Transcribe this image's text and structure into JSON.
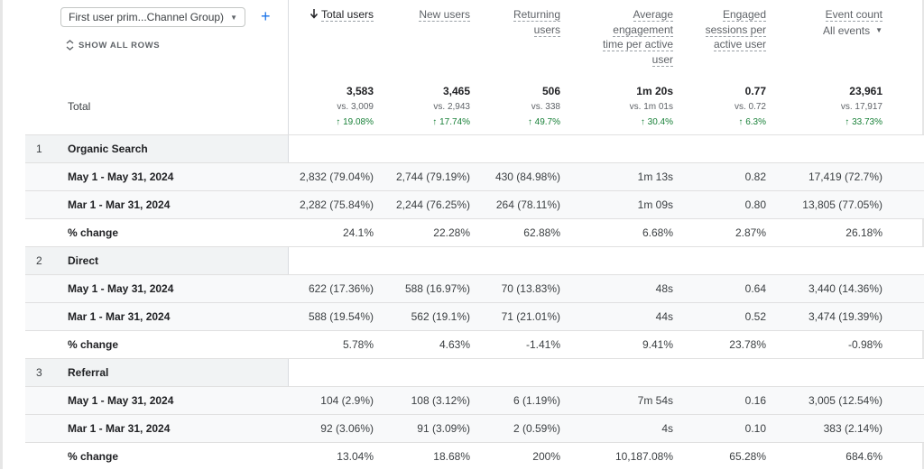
{
  "dimension": {
    "label": "First user prim...Channel Group)"
  },
  "show_all_rows": "SHOW ALL ROWS",
  "columns": [
    {
      "lines": [
        "Total users"
      ],
      "sorted": true
    },
    {
      "lines": [
        "New users"
      ]
    },
    {
      "lines": [
        "Returning",
        "users"
      ]
    },
    {
      "lines": [
        "Average",
        "engagement",
        "time per active",
        "user"
      ]
    },
    {
      "lines": [
        "Engaged",
        "sessions per",
        "active user"
      ]
    },
    {
      "lines": [
        "Event count"
      ],
      "sub": "All events"
    }
  ],
  "totals": {
    "label": "Total",
    "cells": [
      {
        "value": "3,583",
        "vs": "vs. 3,009",
        "change": "19.08%"
      },
      {
        "value": "3,465",
        "vs": "vs. 2,943",
        "change": "17.74%"
      },
      {
        "value": "506",
        "vs": "vs. 338",
        "change": "49.7%"
      },
      {
        "value": "1m 20s",
        "vs": "vs. 1m 01s",
        "change": "30.4%"
      },
      {
        "value": "0.77",
        "vs": "vs. 0.72",
        "change": "6.3%"
      },
      {
        "value": "23,961",
        "vs": "vs. 17,917",
        "change": "33.73%"
      }
    ]
  },
  "groups": [
    {
      "index": "1",
      "name": "Organic Search",
      "rows": [
        {
          "label": "May 1 - May 31, 2024",
          "cells": [
            "2,832 (79.04%)",
            "2,744 (79.19%)",
            "430 (84.98%)",
            "1m 13s",
            "0.82",
            "17,419 (72.7%)"
          ]
        },
        {
          "label": "Mar 1 - Mar 31, 2024",
          "cells": [
            "2,282 (75.84%)",
            "2,244 (76.25%)",
            "264 (78.11%)",
            "1m 09s",
            "0.80",
            "13,805 (77.05%)"
          ]
        },
        {
          "label": "% change",
          "cells": [
            "24.1%",
            "22.28%",
            "62.88%",
            "6.68%",
            "2.87%",
            "26.18%"
          ]
        }
      ]
    },
    {
      "index": "2",
      "name": "Direct",
      "rows": [
        {
          "label": "May 1 - May 31, 2024",
          "cells": [
            "622 (17.36%)",
            "588 (16.97%)",
            "70 (13.83%)",
            "48s",
            "0.64",
            "3,440 (14.36%)"
          ]
        },
        {
          "label": "Mar 1 - Mar 31, 2024",
          "cells": [
            "588 (19.54%)",
            "562 (19.1%)",
            "71 (21.01%)",
            "44s",
            "0.52",
            "3,474 (19.39%)"
          ]
        },
        {
          "label": "% change",
          "cells": [
            "5.78%",
            "4.63%",
            "-1.41%",
            "9.41%",
            "23.78%",
            "-0.98%"
          ]
        }
      ]
    },
    {
      "index": "3",
      "name": "Referral",
      "rows": [
        {
          "label": "May 1 - May 31, 2024",
          "cells": [
            "104 (2.9%)",
            "108 (3.12%)",
            "6 (1.19%)",
            "7m 54s",
            "0.16",
            "3,005 (12.54%)"
          ]
        },
        {
          "label": "Mar 1 - Mar 31, 2024",
          "cells": [
            "92 (3.06%)",
            "91 (3.09%)",
            "2 (0.59%)",
            "4s",
            "0.10",
            "383 (2.14%)"
          ]
        },
        {
          "label": "% change",
          "cells": [
            "13.04%",
            "18.68%",
            "200%",
            "10,187.08%",
            "65.28%",
            "684.6%"
          ]
        }
      ]
    }
  ]
}
